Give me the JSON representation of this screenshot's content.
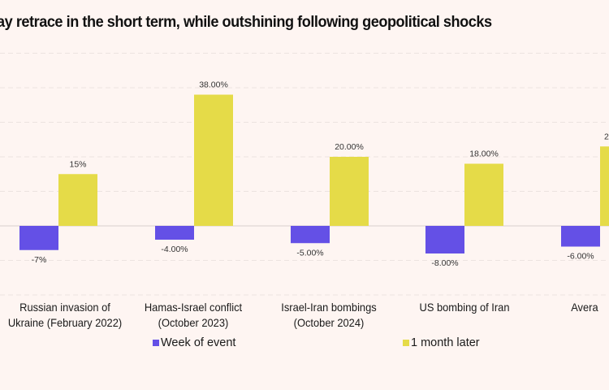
{
  "chart_data": {
    "type": "bar",
    "title": "ay retrace in the short term, while outshining following geopolitical shocks",
    "categories": [
      [
        "Russian invasion of",
        "Ukraine (February 2022)"
      ],
      [
        "Hamas-Israel conflict",
        "(October 2023)"
      ],
      [
        "Israel-Iran bombings",
        "(October 2024)"
      ],
      [
        "US bombing of Iran",
        ""
      ],
      [
        "Avera",
        ""
      ]
    ],
    "series": [
      {
        "name": "Week of event",
        "color": "#6450e6",
        "values": [
          -7,
          -4,
          -5,
          -8,
          -6
        ],
        "labels": [
          "-7%",
          "-4.00%",
          "-5.00%",
          "-8.00%",
          "-6.00%"
        ]
      },
      {
        "name": "1 month later",
        "color": "#e5db48",
        "values": [
          15,
          38,
          20,
          18,
          23
        ],
        "labels": [
          "15%",
          "38.00%",
          "20.00%",
          "18.00%",
          "2"
        ]
      }
    ],
    "ylim": [
      -20,
      50
    ],
    "grid": true,
    "legend": "bottom"
  }
}
